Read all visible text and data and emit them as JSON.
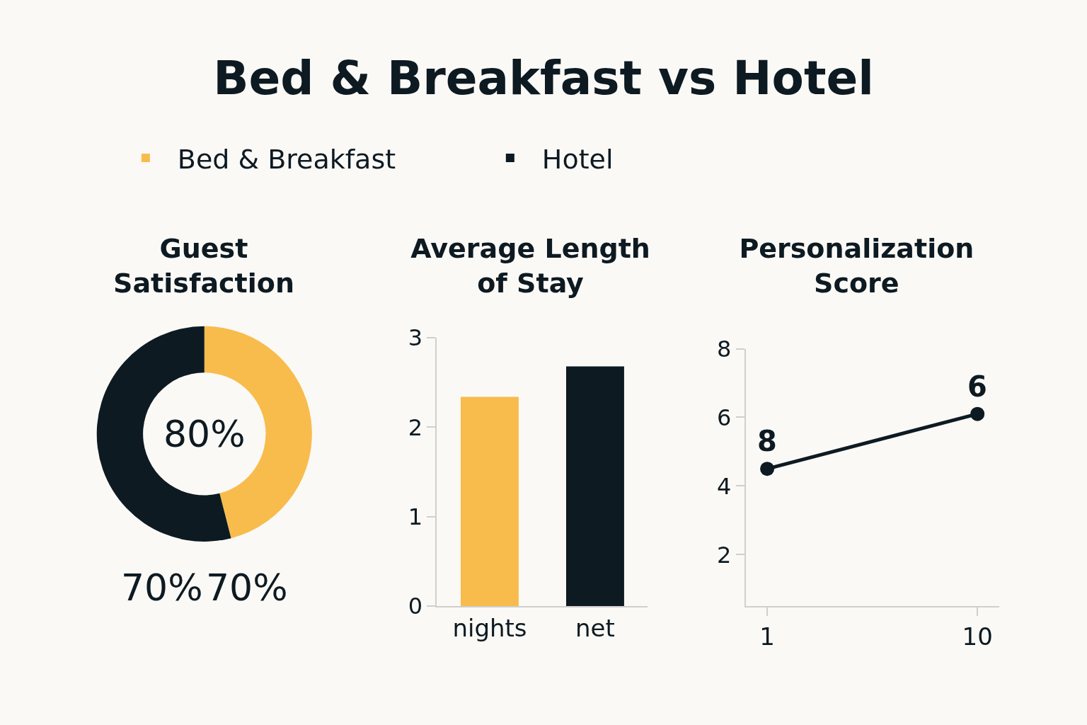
{
  "chart_data": [
    {
      "type": "other",
      "title": "Bed & Breakfast vs Hotel"
    },
    {
      "type": "donut",
      "title": "Guest Satisfaction",
      "categories": [
        "Bed & Breakfast",
        "Hotel"
      ],
      "values": [
        46,
        54
      ],
      "colors": [
        "#f8bc4c",
        "#0d1a22"
      ],
      "legend": "top",
      "annotations": [
        "80%",
        "70%",
        "70%"
      ]
    },
    {
      "type": "bar",
      "title": "Average Length of Stay",
      "categories": [
        "nights",
        "net"
      ],
      "values": [
        2.34,
        2.68
      ],
      "colors": [
        "#f8bc4c",
        "#0d1a22"
      ],
      "ylim": [
        0,
        3
      ],
      "yticks": [
        0,
        1,
        2,
        3
      ]
    },
    {
      "type": "line",
      "title": "Personalization Score",
      "categories": [
        "1",
        "10"
      ],
      "series": [
        {
          "color": "#0d1a22",
          "values": [
            4.5,
            6.1
          ]
        }
      ],
      "annotations": [
        {
          "text": "8",
          "x": "1",
          "y": 4.5
        },
        {
          "text": "6",
          "x": "10",
          "y": 6.1
        }
      ],
      "marker": "circle",
      "ylim": [
        0.5,
        8
      ],
      "yticks": [
        2,
        4,
        6,
        8
      ]
    }
  ]
}
